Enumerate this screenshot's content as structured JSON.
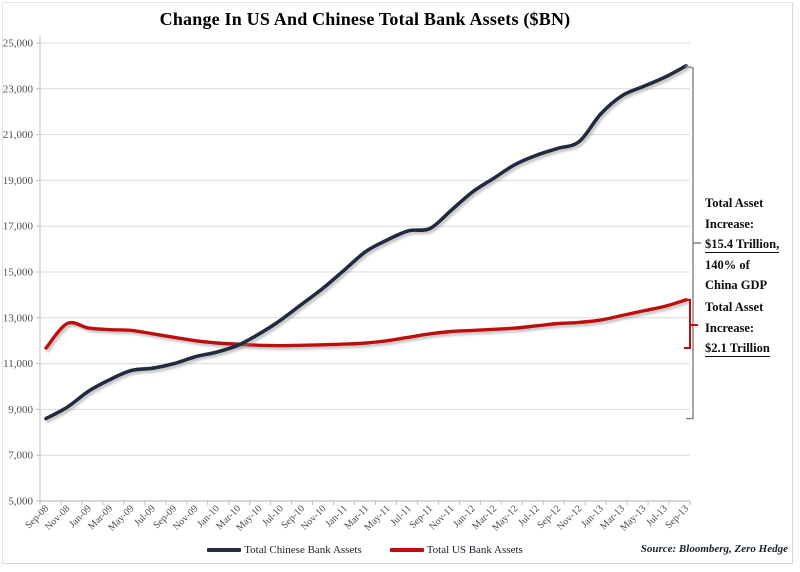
{
  "title": "Change In US And Chinese Total Bank Assets ($BN)",
  "source_note": "Source: Bloomberg, Zero Hedge",
  "annotations": {
    "china": {
      "lines": [
        "Total Asset",
        "Increase:",
        "$15.4 Trillion,",
        "140% of",
        "China GDP"
      ],
      "underlined_text": "$15.4 Trillion,"
    },
    "us": {
      "lines": [
        "Total Asset",
        "Increase:",
        "$2.1 Trillion"
      ],
      "underlined_text": "$2.1 Trillion"
    }
  },
  "chart_data": {
    "type": "line",
    "title": "Change In US And Chinese Total Bank Assets ($BN)",
    "xlabel": "",
    "ylabel": "",
    "ylim": [
      5000,
      25000
    ],
    "y_tick_step": 2000,
    "y_tick_labels": [
      "25,000",
      "23,000",
      "21,000",
      "19,000",
      "17,000",
      "15,000",
      "13,000",
      "11,000",
      "9,000",
      "7,000",
      "5,000"
    ],
    "grid": true,
    "legend_position": "bottom",
    "categories": [
      "Sep-08",
      "Nov-08",
      "Jan-09",
      "Mar-09",
      "May-09",
      "Jul-09",
      "Sep-09",
      "Nov-09",
      "Jan-10",
      "Mar-10",
      "May-10",
      "Jul-10",
      "Sep-10",
      "Nov-10",
      "Jan-11",
      "Mar-11",
      "May-11",
      "Jul-11",
      "Sep-11",
      "Nov-11",
      "Jan-12",
      "Mar-12",
      "May-12",
      "Jul-12",
      "Sep-12",
      "Nov-12",
      "Jan-13",
      "Mar-13",
      "May-13",
      "Jul-13",
      "Sep-13"
    ],
    "series": [
      {
        "name": "Total Chinese Bank Assets",
        "color": "#212c3f",
        "values": [
          8600,
          9100,
          9800,
          10300,
          10700,
          10800,
          11000,
          11300,
          11500,
          11800,
          12300,
          12900,
          13600,
          14300,
          15100,
          15900,
          16400,
          16800,
          16900,
          17700,
          18500,
          19100,
          19700,
          20100,
          20400,
          20700,
          21900,
          22700,
          23100,
          23500,
          24000
        ]
      },
      {
        "name": "Total US Bank Assets",
        "color": "#bf0a0f",
        "values": [
          11680,
          12750,
          12550,
          12480,
          12450,
          12300,
          12150,
          12000,
          11900,
          11850,
          11800,
          11780,
          11800,
          11820,
          11850,
          11900,
          12000,
          12150,
          12300,
          12400,
          12450,
          12500,
          12550,
          12650,
          12750,
          12800,
          12900,
          13100,
          13300,
          13500,
          13780
        ]
      }
    ],
    "reference_lines": [
      {
        "name": "china-sep08-baseline",
        "value": 8600,
        "color": "#3d4a5c",
        "style": "dashed"
      },
      {
        "name": "us-sep08-baseline",
        "value": 11680,
        "color": "#f31111",
        "style": "dashed"
      }
    ],
    "colors": {
      "gridline": "#d9d9d9",
      "axis": "#bfbfbf",
      "tick_label": "#4d4d4d",
      "bracket_china": "#808080",
      "bracket_us": "#bf0a0f"
    }
  }
}
